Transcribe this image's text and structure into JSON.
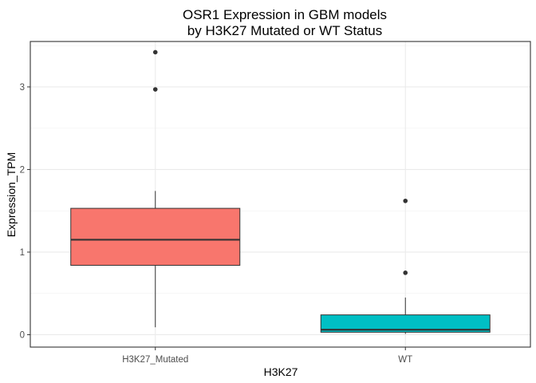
{
  "chart_data": {
    "type": "boxplot",
    "title_lines": [
      "OSR1 Expression in GBM models",
      "by H3K27 Mutated or WT Status"
    ],
    "xlabel": "H3K27",
    "ylabel": "Expression_TPM",
    "ylim": [
      -0.15,
      3.55
    ],
    "y_ticks": [
      0,
      1,
      2,
      3
    ],
    "grid": true,
    "categories": [
      "H3K27_Mutated",
      "WT"
    ],
    "boxes": [
      {
        "category": "H3K27_Mutated",
        "color": "#F8766D",
        "whisker_low": 0.09,
        "q1": 0.84,
        "median": 1.15,
        "q3": 1.53,
        "whisker_high": 1.74,
        "outliers": [
          2.97,
          3.42
        ]
      },
      {
        "category": "WT",
        "color": "#00BFC4",
        "whisker_low": 0.01,
        "q1": 0.03,
        "median": 0.06,
        "q3": 0.24,
        "whisker_high": 0.45,
        "outliers": [
          0.75,
          1.62
        ]
      }
    ]
  }
}
